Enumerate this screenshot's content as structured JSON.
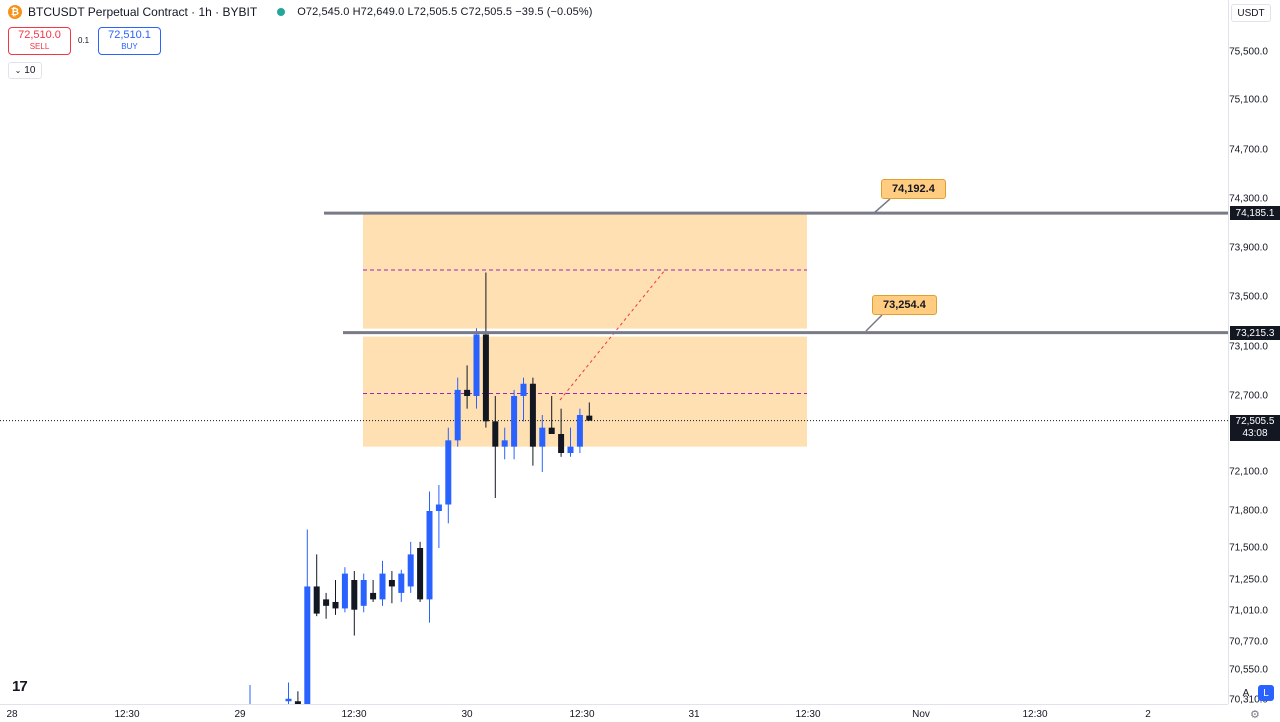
{
  "header": {
    "coin_icon": "bitcoin-icon",
    "symbol_title": "BTCUSDT Perpetual Contract · 1h · BYBIT",
    "ohlc": "O72,545.0 H72,649.0 L72,505.5 C72,505.5 −39.5 (−0.05%)",
    "status_color": "#26a69a"
  },
  "trade": {
    "sell_price": "72,510.0",
    "sell_label": "SELL",
    "spread": "0.1",
    "buy_price": "72,510.1",
    "buy_label": "BUY",
    "quantity": "10",
    "quantity_icon": "chevron-down-icon"
  },
  "currency_selector": "USDT",
  "price_axis": {
    "ticks": [
      "75,500.0",
      "75,100.0",
      "74,700.0",
      "74,300.0",
      "73,900.0",
      "73,500.0",
      "73,100.0",
      "72,700.0",
      "72,100.0",
      "71,800.0",
      "71,500.0",
      "71,250.0",
      "71,010.0",
      "70,770.0",
      "70,550.0",
      "70,310.0"
    ]
  },
  "time_axis": {
    "ticks": [
      "28",
      "12:30",
      "29",
      "12:30",
      "30",
      "12:30",
      "31",
      "12:30",
      "Nov",
      "12:30",
      "2"
    ]
  },
  "price_tags": {
    "upper_level": "74,185.1",
    "lower_level": "73,215.3",
    "last_price": "72,505.5",
    "countdown": "43:08"
  },
  "callouts": {
    "upper": "74,192.4",
    "lower": "73,254.4"
  },
  "controls": {
    "auto_scale": "A",
    "log_scale": "L",
    "settings_icon": "gear-icon",
    "logo": "17"
  },
  "colors": {
    "up": "#2962ff",
    "down": "#131722",
    "zone": "#ffe0b2",
    "callout_bg": "#ffcc80",
    "level_line": "#787b86"
  },
  "chart_data": {
    "type": "candlestick",
    "timeframe": "1h",
    "candles": [
      {
        "o": 70300,
        "h": 70450,
        "l": 70200,
        "c": 70320
      },
      {
        "o": 70300,
        "h": 70380,
        "l": 70200,
        "c": 70250
      },
      {
        "o": 70250,
        "h": 71650,
        "l": 70200,
        "c": 71200
      },
      {
        "o": 71200,
        "h": 71450,
        "l": 70970,
        "c": 70990
      },
      {
        "o": 71100,
        "h": 71150,
        "l": 70950,
        "c": 71050
      },
      {
        "o": 71080,
        "h": 71250,
        "l": 70980,
        "c": 71030
      },
      {
        "o": 71030,
        "h": 71350,
        "l": 71000,
        "c": 71300
      },
      {
        "o": 71250,
        "h": 71320,
        "l": 70820,
        "c": 71020
      },
      {
        "o": 71050,
        "h": 71300,
        "l": 71000,
        "c": 71250
      },
      {
        "o": 71150,
        "h": 71250,
        "l": 71080,
        "c": 71100
      },
      {
        "o": 71100,
        "h": 71400,
        "l": 71050,
        "c": 71300
      },
      {
        "o": 71250,
        "h": 71320,
        "l": 71070,
        "c": 71200
      },
      {
        "o": 71150,
        "h": 71330,
        "l": 71080,
        "c": 71300
      },
      {
        "o": 71200,
        "h": 71550,
        "l": 71150,
        "c": 71450
      },
      {
        "o": 71500,
        "h": 71550,
        "l": 71080,
        "c": 71100
      },
      {
        "o": 71100,
        "h": 71950,
        "l": 70920,
        "c": 71800
      },
      {
        "o": 71800,
        "h": 72000,
        "l": 71500,
        "c": 71850
      },
      {
        "o": 71850,
        "h": 72450,
        "l": 71700,
        "c": 72350
      },
      {
        "o": 72350,
        "h": 72850,
        "l": 72300,
        "c": 72750
      },
      {
        "o": 72750,
        "h": 72950,
        "l": 72600,
        "c": 72700
      },
      {
        "o": 72700,
        "h": 73250,
        "l": 72600,
        "c": 73200
      },
      {
        "o": 73200,
        "h": 73700,
        "l": 72450,
        "c": 72500
      },
      {
        "o": 72500,
        "h": 72700,
        "l": 71900,
        "c": 72300
      },
      {
        "o": 72300,
        "h": 72450,
        "l": 72200,
        "c": 72350
      },
      {
        "o": 72300,
        "h": 72750,
        "l": 72200,
        "c": 72700
      },
      {
        "o": 72700,
        "h": 72850,
        "l": 72500,
        "c": 72800
      },
      {
        "o": 72800,
        "h": 72850,
        "l": 72150,
        "c": 72300
      },
      {
        "o": 72300,
        "h": 72550,
        "l": 72100,
        "c": 72450
      },
      {
        "o": 72450,
        "h": 72700,
        "l": 72400,
        "c": 72400
      },
      {
        "o": 72400,
        "h": 72600,
        "l": 72220,
        "c": 72250
      },
      {
        "o": 72250,
        "h": 72450,
        "l": 72220,
        "c": 72300
      },
      {
        "o": 72300,
        "h": 72600,
        "l": 72250,
        "c": 72550
      },
      {
        "o": 72545,
        "h": 72649,
        "l": 72505.5,
        "c": 72505.5
      }
    ],
    "levels": [
      74185.1,
      73215.3
    ],
    "zone": {
      "top": 74185.1,
      "bottom": 72300
    },
    "dashed_levels": [
      73720,
      72720
    ],
    "projection": {
      "from": 72700,
      "to": 73720
    }
  }
}
